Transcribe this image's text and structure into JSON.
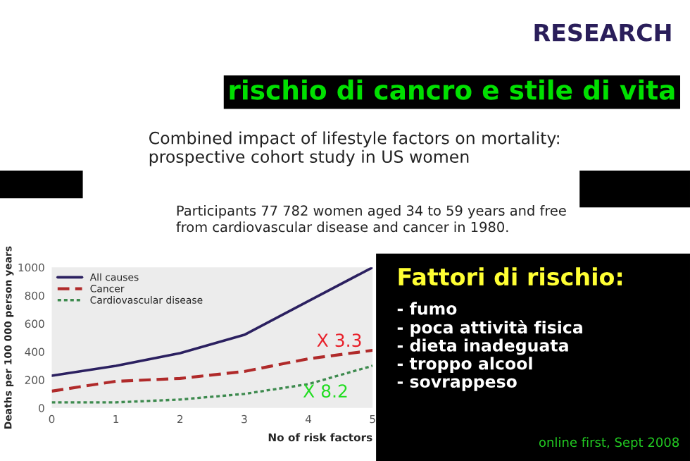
{
  "chart_data": {
    "type": "line",
    "title": "rischio di cancro e stile di vita",
    "subtitle": "Combined impact of lifestyle factors on mortality:\nprospective cohort study in US women",
    "xlabel": "No of risk factors",
    "ylabel": "Deaths per 100 000 person years",
    "x": [
      0,
      1,
      2,
      3,
      4,
      5
    ],
    "series": [
      {
        "name": "All causes",
        "color": "#2b2060",
        "line_style": "solid",
        "values": [
          230,
          300,
          390,
          520,
          760,
          1000
        ]
      },
      {
        "name": "Cancer",
        "color": "#b02a2a",
        "line_style": "dashed",
        "values": [
          120,
          190,
          210,
          260,
          350,
          410
        ]
      },
      {
        "name": "Cardiovascular disease",
        "color": "#3d8a4e",
        "line_style": "dotted",
        "values": [
          40,
          40,
          60,
          100,
          170,
          300
        ]
      }
    ],
    "xlim": [
      0,
      5
    ],
    "xticks": [
      0,
      1,
      2,
      3,
      4,
      5
    ],
    "ylim": [
      0,
      1000
    ],
    "yticks": [
      0,
      200,
      400,
      600,
      800,
      1000
    ],
    "grid": false,
    "legend": "top left",
    "annotations": [
      "RESEARCH",
      "Participants 77 782 women aged 34 to 59 years and free\nfrom cardiovascular disease and cancer in 1980.",
      "Fattori di rischio:",
      "- fumo\n- poca attività fisica\n- dieta inadeguata\n- troppo alcool\n- sovrappeso",
      "online first, Sept 2008",
      "X 3.3",
      "X 8.2"
    ]
  }
}
